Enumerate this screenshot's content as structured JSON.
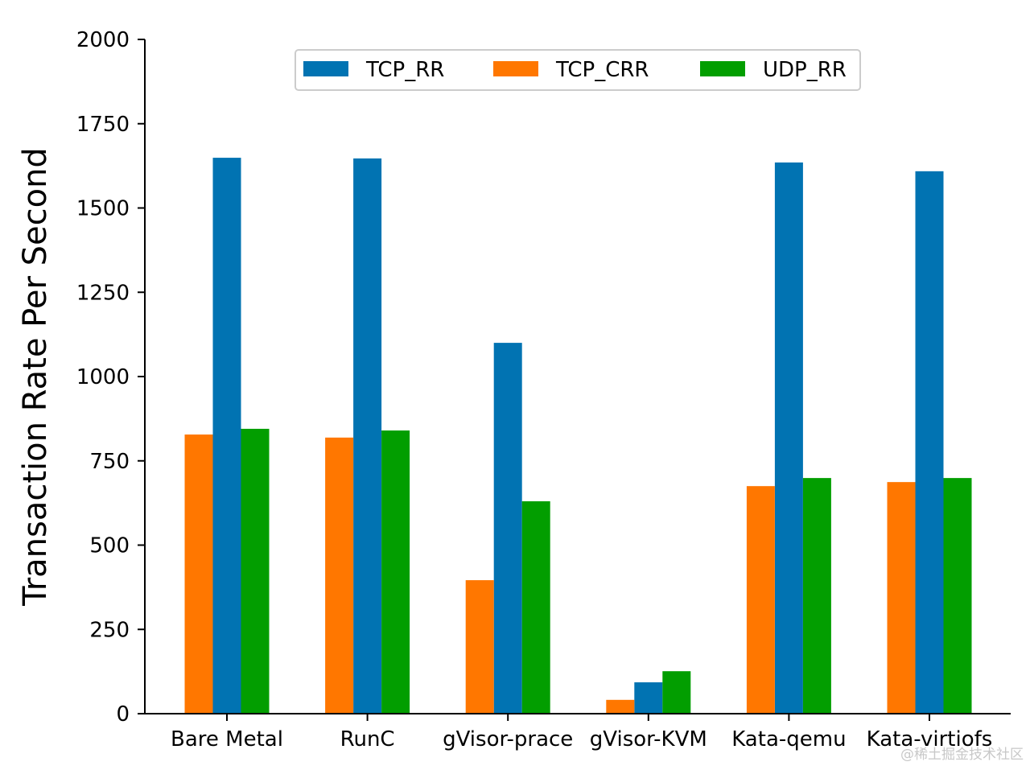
{
  "chart_data": {
    "type": "bar",
    "title": "",
    "xlabel": "",
    "ylabel": "Transaction Rate Per Second",
    "ylim": [
      0,
      2000
    ],
    "yticks": [
      "0",
      "250",
      "500",
      "750",
      "1000",
      "1250",
      "1500",
      "1750",
      "2000"
    ],
    "grid": false,
    "legend_position": "top-center",
    "categories": [
      "Bare Metal",
      "RunC",
      "gVisor-prace",
      "gVisor-KVM",
      "Kata-qemu",
      "Kata-virtiofs"
    ],
    "series": [
      {
        "name": "TCP_RR",
        "color": "#0173b2",
        "values": [
          1649,
          1647,
          1100,
          93,
          1635,
          1609
        ]
      },
      {
        "name": "TCP_CRR",
        "color": "#ff7700",
        "values": [
          828,
          819,
          396,
          41,
          675,
          687
        ]
      },
      {
        "name": "UDP_RR",
        "color": "#029e00",
        "values": [
          845,
          840,
          630,
          126,
          699,
          699
        ]
      }
    ]
  },
  "watermark": "@稀土掘金技术社区"
}
